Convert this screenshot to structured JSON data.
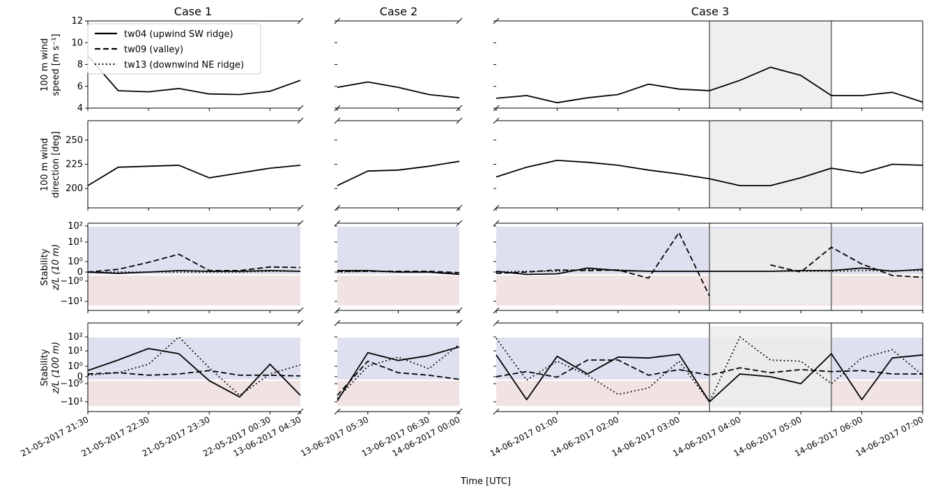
{
  "figure": {
    "case_titles": [
      "Case 1",
      "Case 2",
      "Case 3"
    ],
    "row_ylabels": [
      [
        "100 m wind",
        "speed [m s⁻¹]"
      ],
      [
        "100 m wind",
        "direction [deg]"
      ],
      [
        "Stability",
        "z/L (10 m)"
      ],
      [
        "Stability",
        "z/L (100 m)"
      ]
    ],
    "xlabel": "Time [UTC]",
    "legend": [
      {
        "label": "tw04 (upwind SW ridge)",
        "dash": "solid"
      },
      {
        "label": "tw09 (valley)",
        "dash": "dashed"
      },
      {
        "label": "tw13 (downwind NE ridge)",
        "dash": "dotted"
      }
    ],
    "colors": {
      "line": "#000000",
      "stable_band": "#dfe0ef",
      "unstable_band": "#f1e3e3",
      "highlight": "#ececec",
      "highlight_line": "#888888"
    }
  },
  "chart_data": [
    {
      "type": "line",
      "title": "Case 1",
      "x_ticks": [
        "21-05-2017 21:30",
        "21-05-2017 22:30",
        "21-05-2017 23:30",
        "22-05-2017 00:30",
        "13-06-2017 04:30"
      ],
      "x": [
        "21:30",
        "22:00",
        "22:30",
        "23:00",
        "23:30",
        "00:00",
        "00:30",
        "01:00"
      ],
      "panels": [
        {
          "ylabel": "100 m wind speed [m s-1]",
          "ylim": [
            4,
            12
          ],
          "yticks": [
            "4",
            "6",
            "8",
            "10",
            "12"
          ],
          "series": [
            {
              "name": "tw04 (upwind SW ridge)",
              "values": [
                8.8,
                5.6,
                5.5,
                5.8,
                5.3,
                5.25,
                5.55,
                6.55
              ]
            }
          ]
        },
        {
          "ylabel": "100 m wind direction [deg]",
          "ylim": [
            180,
            270
          ],
          "yticks": [
            "200",
            "225",
            "250"
          ],
          "series": [
            {
              "name": "tw04 (upwind SW ridge)",
              "values": [
                203,
                222,
                223,
                224,
                211,
                216,
                221,
                224
              ]
            }
          ]
        },
        {
          "ylabel": "Stability z/L (10 m)",
          "yscale": "symlog",
          "yticks": [
            "-10¹",
            "-10⁰",
            "0",
            "10⁰",
            "10¹",
            "10²"
          ],
          "series": [
            {
              "name": "tw04 (upwind SW ridge)",
              "values": [
                0,
                -0.1,
                0,
                0.1,
                0.05,
                0.05,
                0.1,
                0.05
              ]
            },
            {
              "name": "tw09 (valley)",
              "values": [
                0,
                0.2,
                0.9,
                2.8,
                0.1,
                0.1,
                0.4,
                0.35
              ]
            },
            {
              "name": "tw13 (downwind NE ridge)",
              "values": [
                0,
                0,
                0,
                0,
                0,
                0,
                0.05,
                0.05
              ]
            }
          ]
        },
        {
          "ylabel": "Stability z/L (100 m)",
          "yscale": "symlog",
          "yticks": [
            "-10¹",
            "-10⁰",
            "0",
            "10⁰",
            "10¹",
            "10²"
          ],
          "series": [
            {
              "name": "tw04 (upwind SW ridge)",
              "values": [
                0.5,
                3,
                15,
                7,
                -0.5,
                -6,
                1.5,
                -5
              ]
            },
            {
              "name": "tw09 (valley)",
              "values": [
                0.2,
                0.3,
                0.1,
                0.2,
                0.5,
                0.1,
                0.1,
                0.05
              ]
            },
            {
              "name": "tw13 (downwind NE ridge)",
              "values": [
                0.1,
                0.3,
                1.5,
                100,
                0.8,
                -5,
                0.2,
                1.3
              ]
            }
          ]
        }
      ]
    },
    {
      "type": "line",
      "title": "Case 2",
      "x_ticks": [
        "13-06-2017 05:30",
        "13-06-2017 06:30",
        "14-06-2017 00:00"
      ],
      "x": [
        "04:30",
        "05:00",
        "05:30",
        "06:00",
        "06:30"
      ],
      "panels": [
        {
          "ylim": [
            4,
            12
          ],
          "series": [
            {
              "name": "tw04 (upwind SW ridge)",
              "values": [
                5.9,
                6.4,
                5.9,
                5.25,
                4.95
              ]
            }
          ]
        },
        {
          "ylim": [
            180,
            270
          ],
          "series": [
            {
              "name": "tw04 (upwind SW ridge)",
              "values": [
                203,
                218,
                219,
                223,
                228
              ]
            }
          ]
        },
        {
          "yscale": "symlog",
          "series": [
            {
              "name": "tw04 (upwind SW ridge)",
              "values": [
                0.1,
                0.1,
                0,
                0,
                -0.2
              ]
            },
            {
              "name": "tw09 (valley)",
              "values": [
                0.05,
                0.05,
                0.05,
                0.05,
                -0.05
              ]
            },
            {
              "name": "tw13 (downwind NE ridge)",
              "values": [
                0,
                0.05,
                0,
                0,
                -0.1
              ]
            }
          ]
        },
        {
          "yscale": "symlog",
          "series": [
            {
              "name": "tw04 (upwind SW ridge)",
              "values": [
                -9,
                8,
                2.8,
                5.5,
                20
              ]
            },
            {
              "name": "tw09 (valley)",
              "values": [
                -5,
                2.5,
                0.3,
                0.1,
                -0.3
              ]
            },
            {
              "name": "tw13 (downwind NE ridge)",
              "values": [
                -7,
                1,
                4.5,
                0.7,
                30
              ]
            }
          ]
        }
      ]
    },
    {
      "type": "line",
      "title": "Case 3",
      "x_ticks": [
        "14-06-2017 01:00",
        "14-06-2017 02:00",
        "14-06-2017 03:00",
        "14-06-2017 04:00",
        "14-06-2017 05:00",
        "14-06-2017 06:00",
        "14-06-2017 07:00"
      ],
      "x": [
        "00:00",
        "00:30",
        "01:00",
        "01:30",
        "02:00",
        "02:30",
        "03:00",
        "03:30",
        "04:00",
        "04:30",
        "05:00",
        "05:30",
        "06:00",
        "06:30",
        "07:00"
      ],
      "highlight": [
        "03:30",
        "05:30"
      ],
      "panels": [
        {
          "ylim": [
            4,
            12
          ],
          "series": [
            {
              "name": "tw04 (upwind SW ridge)",
              "values": [
                4.9,
                5.15,
                4.5,
                4.95,
                5.25,
                6.2,
                5.75,
                5.6,
                6.55,
                7.75,
                7.0,
                5.15,
                5.15,
                5.45,
                4.55
              ]
            }
          ]
        },
        {
          "ylim": [
            180,
            270
          ],
          "series": [
            {
              "name": "tw04 (upwind SW ridge)",
              "values": [
                212,
                222,
                229,
                227,
                224,
                219,
                215,
                210,
                203,
                203,
                211,
                221,
                216,
                225,
                224
              ]
            }
          ]
        },
        {
          "yscale": "symlog",
          "series": [
            {
              "name": "tw04 (upwind SW ridge)",
              "values": [
                0.05,
                -0.2,
                -0.15,
                0.3,
                0.1,
                0.05,
                0.05,
                0.05,
                0.05,
                0.05,
                0.1,
                0.1,
                0.3,
                0.05,
                0.2
              ]
            },
            {
              "name": "tw09 (valley)",
              "values": [
                -0.1,
                0,
                0.15,
                0.1,
                0.15,
                -0.6,
                40,
                -6,
                null,
                0.6,
                0,
                6,
                0.7,
                -0.3,
                -0.5
              ]
            },
            {
              "name": "tw13 (downwind NE ridge)",
              "values": [
                0,
                0.05,
                0.05,
                0.2,
                0.15,
                0.05,
                0.05,
                0.05,
                0.05,
                0.05,
                0.05,
                0.05,
                0.1,
                0.1,
                0.1
              ]
            }
          ]
        },
        {
          "yscale": "symlog",
          "series": [
            {
              "name": "tw04 (upwind SW ridge)",
              "values": [
                6,
                -8,
                5,
                0.2,
                4.5,
                4,
                6.5,
                -10,
                0.2,
                0,
                -1,
                7,
                -8,
                4,
                6
              ]
            },
            {
              "name": "tw09 (valley)",
              "values": [
                0,
                0.4,
                -0.05,
                3,
                3,
                0.1,
                0.6,
                0.1,
                0.8,
                0.3,
                0.6,
                0.4,
                0.5,
                0.2,
                0.2
              ]
            },
            {
              "name": "tw13 (downwind NE ridge)",
              "values": [
                80,
                -0.4,
                2.5,
                0.1,
                -4.5,
                -2,
                2.5,
                -10,
                200,
                3,
                2.5,
                -1,
                4,
                12,
                0.1
              ]
            }
          ]
        }
      ]
    }
  ]
}
